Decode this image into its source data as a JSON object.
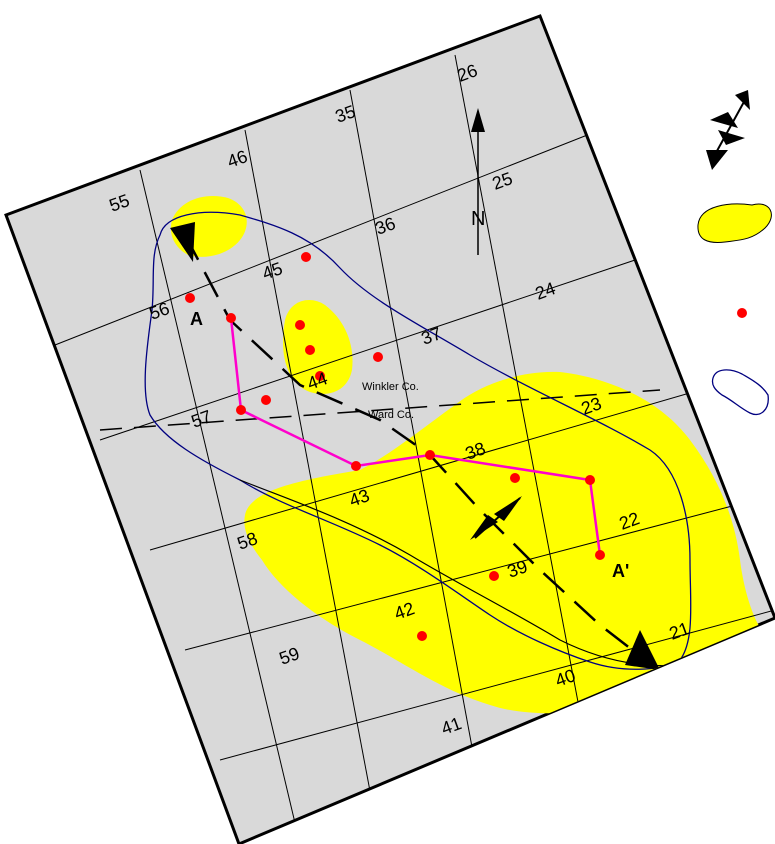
{
  "map": {
    "north_label": "N",
    "county_labels": {
      "north": "Winkler Co.",
      "south": "Ward Co."
    },
    "section_labels": [
      "26",
      "35",
      "46",
      "55",
      "25",
      "36",
      "45",
      "56",
      "24",
      "37",
      "44",
      "57",
      "23",
      "38",
      "43",
      "58",
      "22",
      "39",
      "42",
      "59",
      "21",
      "40",
      "41"
    ],
    "cross_section": {
      "start_label": "A",
      "end_label": "A'"
    },
    "colors": {
      "background": "#d9d9d9",
      "yellow_area": "#ffff00",
      "well": "#ff0000",
      "section_line": "#ff00cc",
      "outline": "#000080",
      "grid": "#000000"
    },
    "legend": {
      "items": [
        "anticline-axis-symbol",
        "yellow-area-symbol",
        "well-symbol",
        "outline-symbol"
      ]
    }
  }
}
